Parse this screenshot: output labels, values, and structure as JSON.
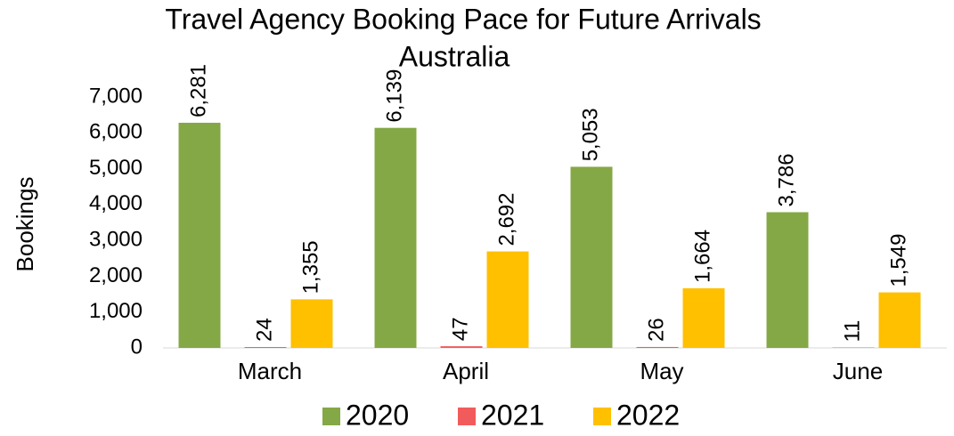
{
  "chart_data": {
    "type": "bar",
    "title": "Travel Agency Booking Pace for Future Arrivals",
    "subtitle": "Australia",
    "y_label": "Bookings",
    "categories": [
      "March",
      "April",
      "May",
      "June"
    ],
    "series": [
      {
        "name": "2020",
        "color": "#84a846",
        "values": [
          6281,
          6139,
          5053,
          3786
        ],
        "value_labels": [
          "6,281",
          "6,139",
          "5,053",
          "3,786"
        ]
      },
      {
        "name": "2021",
        "color": "#f25b5b",
        "values": [
          24,
          47,
          26,
          11
        ]
      },
      {
        "name": "2022",
        "color": "#ffc000",
        "values": [
          1355,
          2692,
          1664,
          1549
        ],
        "value_labels": [
          "1,355",
          "2,692",
          "1,664",
          "1,549"
        ]
      }
    ],
    "ylim": [
      0,
      7000
    ],
    "yticks": [
      0,
      {
        "value": 1000,
        "label": "1,000"
      },
      {
        "value": 2000,
        "label": "2,000"
      },
      {
        "value": 3000,
        "label": "3,000"
      },
      {
        "value": 4000,
        "label": "4,000"
      },
      {
        "value": 5000,
        "label": "5,000"
      },
      {
        "value": 6000,
        "label": "6,000"
      },
      {
        "value": 7000,
        "label": "7,000"
      }
    ],
    "legend": "bottom"
  }
}
